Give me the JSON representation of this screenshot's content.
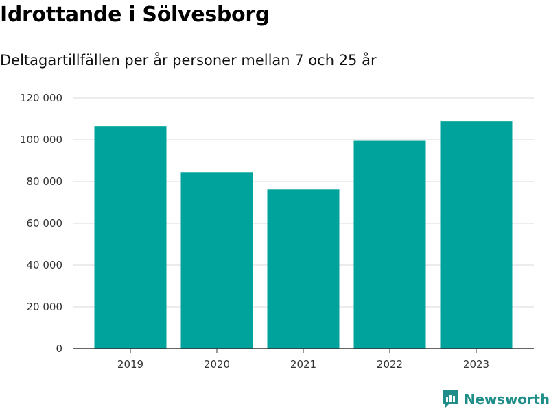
{
  "brand": {
    "name": "Newsworthy",
    "color": "#1f8e88"
  },
  "chart_data": {
    "type": "bar",
    "title": "Idrottande i Sölvesborg",
    "subtitle": "Deltagartillfällen per år personer mellan 7 och 25 år",
    "categories": [
      "2019",
      "2020",
      "2021",
      "2022",
      "2023"
    ],
    "values": [
      106500,
      84500,
      76300,
      99500,
      108800
    ],
    "ylim": [
      0,
      120000
    ],
    "yticks": [
      0,
      20000,
      40000,
      60000,
      80000,
      100000,
      120000
    ],
    "ytick_labels": [
      "0",
      "20 000",
      "40 000",
      "60 000",
      "80 000",
      "100 000",
      "120 000"
    ],
    "grid": true,
    "bar_color": "#00a39b"
  }
}
